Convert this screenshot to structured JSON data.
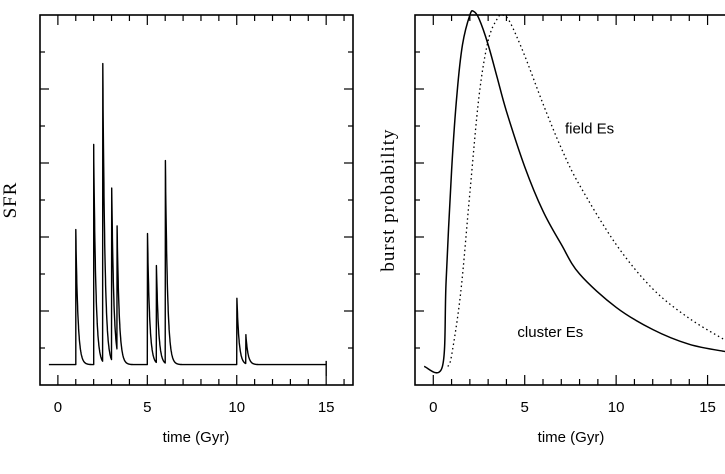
{
  "chart_data": [
    {
      "type": "line",
      "title": "",
      "xlabel": "time (Gyr)",
      "ylabel": "SFR",
      "xlim": [
        -1,
        16.5
      ],
      "ylim": [
        0,
        1.0
      ],
      "xticks": [
        0,
        5,
        10,
        15
      ],
      "xtick_labels": [
        "0",
        "5",
        "10",
        "15"
      ],
      "baseline": 0.055,
      "series": [
        {
          "name": "",
          "style": "solid",
          "bursts": [
            {
              "t": 1.0,
              "amp": 0.42
            },
            {
              "t": 2.0,
              "amp": 0.65
            },
            {
              "t": 2.5,
              "amp": 0.93
            },
            {
              "t": 3.0,
              "amp": 0.56
            },
            {
              "t": 3.3,
              "amp": 0.42
            },
            {
              "t": 5.0,
              "amp": 0.44
            },
            {
              "t": 5.5,
              "amp": 0.34
            },
            {
              "t": 6.0,
              "amp": 0.65
            },
            {
              "t": 10.0,
              "amp": 0.25
            },
            {
              "t": 10.5,
              "amp": 0.14
            }
          ],
          "segment_ends": [
            1.0,
            2.0,
            5.0,
            10.0,
            15.0
          ]
        }
      ]
    },
    {
      "type": "line",
      "title": "",
      "xlabel": "time (Gyr)",
      "ylabel": "burst probability",
      "xlim": [
        -1,
        16.5
      ],
      "ylim": [
        0,
        1.0
      ],
      "xticks": [
        0,
        5,
        10,
        15
      ],
      "xtick_labels": [
        "0",
        "5",
        "10",
        "15"
      ],
      "series": [
        {
          "name": "cluster Es",
          "style": "solid",
          "x": [
            -0.5,
            0.5,
            0.7,
            1.0,
            1.3,
            1.6,
            2.0,
            2.2,
            2.5,
            3.0,
            3.5,
            4.0,
            5.0,
            6.0,
            7.0,
            8.0,
            10.0,
            12.0,
            14.0,
            16.0
          ],
          "y": [
            0.05,
            0.05,
            0.28,
            0.58,
            0.79,
            0.92,
            1.0,
            1.01,
            0.99,
            0.92,
            0.83,
            0.74,
            0.59,
            0.47,
            0.38,
            0.3,
            0.21,
            0.15,
            0.11,
            0.09
          ]
        },
        {
          "name": "field Es",
          "style": "dotted",
          "x": [
            0.8,
            1.0,
            1.5,
            2.0,
            2.5,
            3.0,
            3.5,
            3.8,
            4.2,
            5.0,
            6.0,
            7.0,
            8.0,
            10.0,
            12.0,
            14.0,
            16.0
          ],
          "y": [
            0.05,
            0.08,
            0.25,
            0.52,
            0.78,
            0.93,
            0.99,
            1.0,
            0.98,
            0.89,
            0.76,
            0.64,
            0.54,
            0.38,
            0.26,
            0.18,
            0.12
          ]
        }
      ],
      "annotations": [
        {
          "text": "field Es",
          "x": 7.2,
          "y": 0.68
        },
        {
          "text": "cluster Es",
          "x": 4.6,
          "y": 0.13
        }
      ]
    }
  ]
}
